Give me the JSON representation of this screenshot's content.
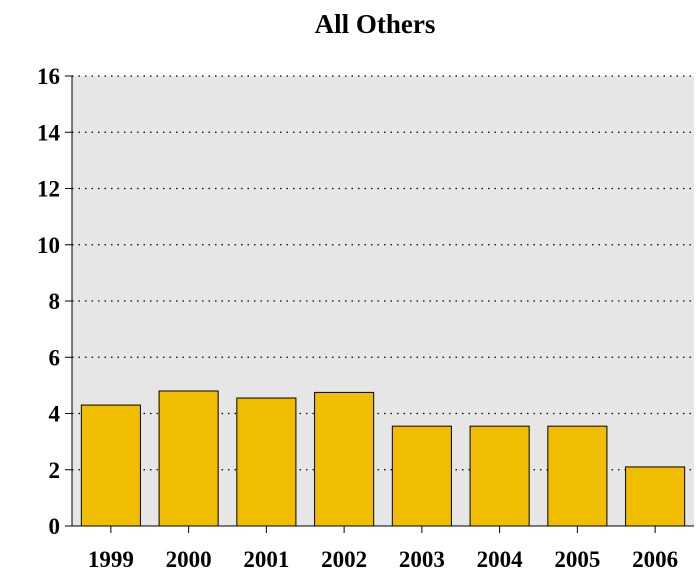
{
  "chart_data": {
    "type": "bar",
    "title": "All Others",
    "categories": [
      "1999",
      "2000",
      "2001",
      "2002",
      "2003",
      "2004",
      "2005",
      "2006"
    ],
    "values": [
      4.3,
      4.8,
      4.55,
      4.75,
      3.55,
      3.55,
      3.55,
      2.1
    ],
    "ylim": [
      0,
      16
    ],
    "yticks": [
      "0",
      "2",
      "4",
      "6",
      "8",
      "10",
      "12",
      "14",
      "16"
    ],
    "xlabel": "",
    "ylabel": "",
    "grid": true,
    "colors": {
      "bar": "#F0BD00",
      "bar_outline": "#000000",
      "plot_background": "#E6E6E6",
      "grid": "#000000"
    }
  }
}
